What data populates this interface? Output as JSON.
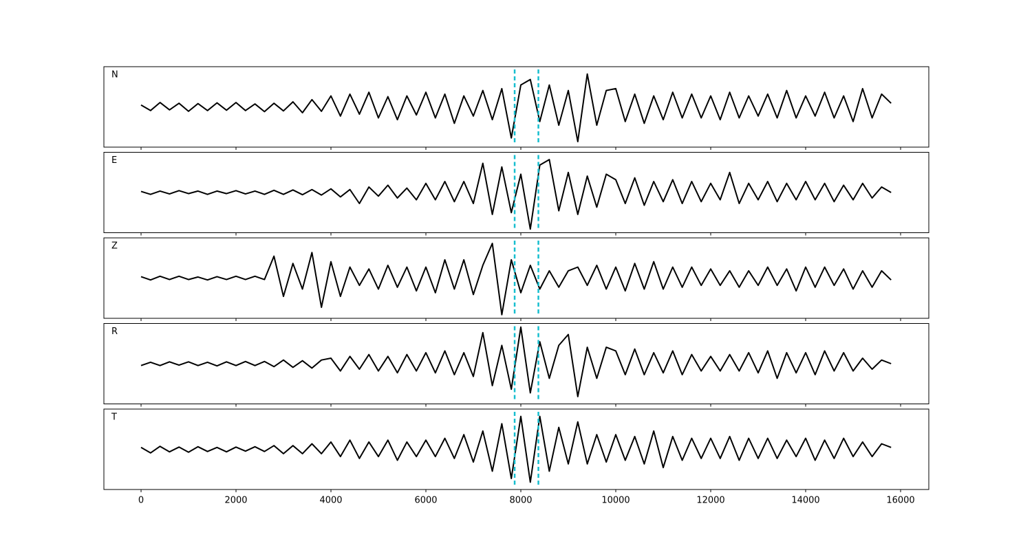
{
  "chart_data": {
    "type": "line",
    "xlim": [
      -783,
      16594
    ],
    "ylim": [
      -1.1,
      1.1
    ],
    "xticks": [
      0,
      2000,
      4000,
      6000,
      8000,
      10000,
      12000,
      14000,
      16000
    ],
    "vlines": [
      7870,
      8370
    ],
    "vline_color": "#17becf",
    "x": [
      0,
      200,
      400,
      600,
      800,
      1000,
      1200,
      1400,
      1600,
      1800,
      2000,
      2200,
      2400,
      2600,
      2800,
      3000,
      3200,
      3400,
      3600,
      3800,
      4000,
      4200,
      4400,
      4600,
      4800,
      5000,
      5200,
      5400,
      5600,
      5800,
      6000,
      6200,
      6400,
      6600,
      6800,
      7000,
      7200,
      7400,
      7600,
      7800,
      8000,
      8200,
      8400,
      8600,
      8800,
      9000,
      9200,
      9400,
      9600,
      9800,
      10000,
      10200,
      10400,
      10600,
      10800,
      11000,
      11200,
      11400,
      11600,
      11800,
      12000,
      12200,
      12400,
      12600,
      12800,
      13000,
      13200,
      13400,
      13600,
      13800,
      14000,
      14200,
      14400,
      14600,
      14800,
      15000,
      15200,
      15400,
      15600,
      15800
    ],
    "series": [
      {
        "name": "N",
        "color": "#000000",
        "values": [
          0.05,
          -0.1,
          0.12,
          -0.08,
          0.1,
          -0.12,
          0.09,
          -0.1,
          0.11,
          -0.09,
          0.12,
          -0.1,
          0.08,
          -0.13,
          0.1,
          -0.11,
          0.14,
          -0.16,
          0.2,
          -0.12,
          0.3,
          -0.25,
          0.35,
          -0.2,
          0.4,
          -0.3,
          0.28,
          -0.35,
          0.3,
          -0.22,
          0.4,
          -0.3,
          0.35,
          -0.45,
          0.3,
          -0.25,
          0.45,
          -0.35,
          0.5,
          -0.85,
          0.6,
          0.75,
          -0.4,
          0.6,
          -0.5,
          0.45,
          -0.95,
          0.9,
          -0.5,
          0.45,
          0.5,
          -0.4,
          0.35,
          -0.45,
          0.3,
          -0.35,
          0.4,
          -0.3,
          0.35,
          -0.3,
          0.3,
          -0.35,
          0.4,
          -0.3,
          0.3,
          -0.25,
          0.35,
          -0.3,
          0.45,
          -0.3,
          0.3,
          -0.25,
          0.4,
          -0.3,
          0.3,
          -0.4,
          0.5,
          -0.3,
          0.35,
          0.1
        ]
      },
      {
        "name": "E",
        "color": "#000000",
        "values": [
          0.03,
          -0.05,
          0.04,
          -0.04,
          0.05,
          -0.03,
          0.04,
          -0.05,
          0.04,
          -0.03,
          0.05,
          -0.04,
          0.04,
          -0.05,
          0.06,
          -0.05,
          0.07,
          -0.06,
          0.08,
          -0.07,
          0.1,
          -0.12,
          0.08,
          -0.3,
          0.15,
          -0.1,
          0.2,
          -0.15,
          0.12,
          -0.2,
          0.25,
          -0.2,
          0.3,
          -0.25,
          0.3,
          -0.3,
          0.8,
          -0.6,
          0.7,
          -0.55,
          0.5,
          -1.0,
          0.75,
          0.9,
          -0.5,
          0.55,
          -0.6,
          0.45,
          -0.4,
          0.5,
          0.35,
          -0.3,
          0.4,
          -0.35,
          0.3,
          -0.25,
          0.35,
          -0.3,
          0.3,
          -0.25,
          0.25,
          -0.2,
          0.55,
          -0.3,
          0.25,
          -0.2,
          0.3,
          -0.25,
          0.25,
          -0.2,
          0.3,
          -0.2,
          0.25,
          -0.25,
          0.2,
          -0.2,
          0.25,
          -0.15,
          0.15,
          0.0
        ]
      },
      {
        "name": "Z",
        "color": "#000000",
        "values": [
          0.04,
          -0.05,
          0.05,
          -0.04,
          0.05,
          -0.04,
          0.03,
          -0.05,
          0.04,
          -0.04,
          0.05,
          -0.04,
          0.05,
          -0.04,
          0.6,
          -0.5,
          0.4,
          -0.3,
          0.7,
          -0.8,
          0.45,
          -0.5,
          0.3,
          -0.2,
          0.25,
          -0.3,
          0.35,
          -0.25,
          0.3,
          -0.35,
          0.3,
          -0.4,
          0.5,
          -0.3,
          0.5,
          -0.45,
          0.35,
          0.95,
          -1.0,
          0.5,
          -0.4,
          0.35,
          -0.3,
          0.2,
          -0.25,
          0.2,
          0.3,
          -0.2,
          0.35,
          -0.3,
          0.3,
          -0.35,
          0.4,
          -0.3,
          0.45,
          -0.3,
          0.3,
          -0.25,
          0.3,
          -0.2,
          0.25,
          -0.2,
          0.2,
          -0.25,
          0.2,
          -0.2,
          0.3,
          -0.2,
          0.25,
          -0.35,
          0.3,
          -0.25,
          0.3,
          -0.2,
          0.25,
          -0.3,
          0.2,
          -0.25,
          0.2,
          -0.05
        ]
      },
      {
        "name": "R",
        "color": "#000000",
        "values": [
          -0.05,
          0.04,
          -0.05,
          0.05,
          -0.04,
          0.05,
          -0.05,
          0.04,
          -0.06,
          0.05,
          -0.05,
          0.06,
          -0.05,
          0.06,
          -0.08,
          0.1,
          -0.1,
          0.08,
          -0.12,
          0.1,
          0.15,
          -0.2,
          0.2,
          -0.15,
          0.25,
          -0.2,
          0.2,
          -0.25,
          0.25,
          -0.2,
          0.3,
          -0.25,
          0.35,
          -0.3,
          0.3,
          -0.35,
          0.85,
          -0.6,
          0.5,
          -0.7,
          1.0,
          -0.8,
          0.6,
          -0.4,
          0.5,
          0.8,
          -0.9,
          0.45,
          -0.4,
          0.45,
          0.35,
          -0.3,
          0.4,
          -0.3,
          0.3,
          -0.25,
          0.35,
          -0.3,
          0.25,
          -0.2,
          0.2,
          -0.2,
          0.25,
          -0.2,
          0.3,
          -0.25,
          0.35,
          -0.4,
          0.3,
          -0.25,
          0.3,
          -0.3,
          0.35,
          -0.2,
          0.3,
          -0.2,
          0.15,
          -0.15,
          0.1,
          0.0
        ]
      },
      {
        "name": "T",
        "color": "#000000",
        "values": [
          0.05,
          -0.1,
          0.08,
          -0.07,
          0.06,
          -0.08,
          0.07,
          -0.06,
          0.05,
          -0.07,
          0.06,
          -0.05,
          0.07,
          -0.06,
          0.1,
          -0.12,
          0.1,
          -0.12,
          0.15,
          -0.12,
          0.2,
          -0.2,
          0.25,
          -0.25,
          0.2,
          -0.2,
          0.25,
          -0.3,
          0.2,
          -0.2,
          0.25,
          -0.2,
          0.3,
          -0.25,
          0.4,
          -0.35,
          0.5,
          -0.6,
          0.7,
          -0.8,
          0.9,
          -0.9,
          0.9,
          -0.6,
          0.6,
          -0.4,
          0.75,
          -0.4,
          0.4,
          -0.35,
          0.4,
          -0.3,
          0.35,
          -0.4,
          0.5,
          -0.5,
          0.35,
          -0.3,
          0.3,
          -0.25,
          0.3,
          -0.25,
          0.35,
          -0.3,
          0.3,
          -0.25,
          0.3,
          -0.25,
          0.25,
          -0.2,
          0.3,
          -0.3,
          0.25,
          -0.25,
          0.3,
          -0.2,
          0.2,
          -0.2,
          0.15,
          0.05
        ]
      }
    ]
  }
}
